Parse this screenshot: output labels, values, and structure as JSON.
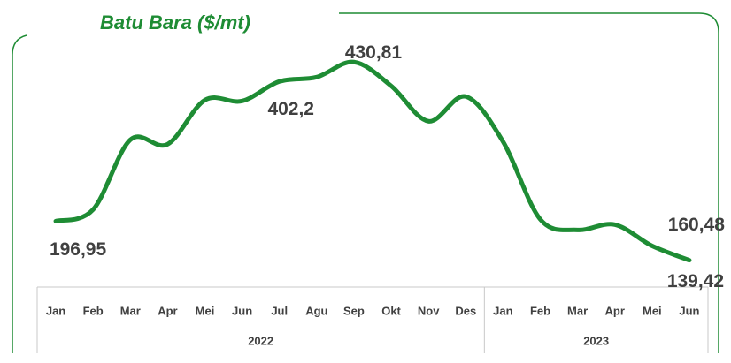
{
  "chart_data": {
    "type": "line",
    "title": "Batu Bara ($/mt)",
    "categories": [
      "Jan",
      "Feb",
      "Mar",
      "Apr",
      "Mei",
      "Jun",
      "Jul",
      "Agu",
      "Sep",
      "Okt",
      "Nov",
      "Des",
      "Jan",
      "Feb",
      "Mar",
      "Apr",
      "Mei",
      "Jun"
    ],
    "groups": [
      {
        "label": "2022",
        "span": 12
      },
      {
        "label": "2023",
        "span": 6
      }
    ],
    "series": [
      {
        "name": "Batu Bara",
        "color": "#1e8c34",
        "values": [
          196.95,
          213.8,
          316.5,
          310,
          374.9,
          373.6,
          402.2,
          408.7,
          430.81,
          395.7,
          343.8,
          380.2,
          313.9,
          199.6,
          184,
          191.8,
          160.48,
          139.42
        ],
        "value_labels": [
          "196,95",
          null,
          null,
          null,
          null,
          null,
          "402,2",
          null,
          "430,81",
          null,
          null,
          null,
          null,
          null,
          null,
          null,
          "160,48",
          "139,42"
        ]
      }
    ],
    "ylim": [
      100,
      500
    ]
  }
}
